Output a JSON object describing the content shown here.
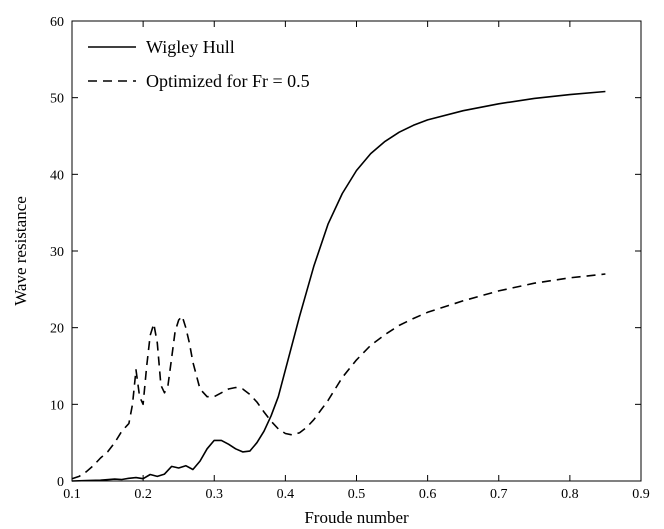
{
  "chart_data": {
    "type": "line",
    "title": "",
    "xlabel": "Froude number",
    "ylabel": "Wave resistance",
    "xlim": [
      0.1,
      0.9
    ],
    "ylim": [
      0,
      60
    ],
    "xticks": [
      "0.1",
      "0.2",
      "0.3",
      "0.4",
      "0.5",
      "0.6",
      "0.7",
      "0.8",
      "0.9"
    ],
    "yticks": [
      "0",
      "10",
      "20",
      "30",
      "40",
      "50",
      "60"
    ],
    "grid": false,
    "legend_position": "top-left",
    "series": [
      {
        "name": "Wigley Hull",
        "style": "solid",
        "x": [
          0.1,
          0.12,
          0.14,
          0.16,
          0.17,
          0.18,
          0.19,
          0.2,
          0.21,
          0.22,
          0.23,
          0.24,
          0.25,
          0.26,
          0.27,
          0.28,
          0.29,
          0.3,
          0.31,
          0.32,
          0.33,
          0.34,
          0.35,
          0.36,
          0.37,
          0.38,
          0.39,
          0.4,
          0.42,
          0.44,
          0.46,
          0.48,
          0.5,
          0.52,
          0.54,
          0.56,
          0.58,
          0.6,
          0.65,
          0.7,
          0.75,
          0.8,
          0.85
        ],
        "y": [
          0.0,
          0.05,
          0.1,
          0.25,
          0.2,
          0.35,
          0.45,
          0.3,
          0.85,
          0.6,
          0.9,
          1.9,
          1.7,
          2.0,
          1.5,
          2.6,
          4.2,
          5.3,
          5.3,
          4.8,
          4.2,
          3.8,
          3.9,
          5.0,
          6.5,
          8.5,
          11.0,
          14.5,
          21.5,
          28.0,
          33.5,
          37.5,
          40.5,
          42.7,
          44.3,
          45.5,
          46.4,
          47.1,
          48.3,
          49.2,
          49.9,
          50.4,
          50.8
        ]
      },
      {
        "name": "Optimized for Fr = 0.5",
        "style": "dashed",
        "x": [
          0.1,
          0.11,
          0.12,
          0.13,
          0.14,
          0.15,
          0.16,
          0.17,
          0.18,
          0.185,
          0.19,
          0.195,
          0.2,
          0.205,
          0.21,
          0.215,
          0.22,
          0.225,
          0.23,
          0.235,
          0.24,
          0.245,
          0.25,
          0.255,
          0.26,
          0.265,
          0.27,
          0.28,
          0.29,
          0.3,
          0.31,
          0.32,
          0.33,
          0.34,
          0.35,
          0.36,
          0.37,
          0.38,
          0.39,
          0.4,
          0.41,
          0.42,
          0.43,
          0.44,
          0.46,
          0.48,
          0.5,
          0.52,
          0.54,
          0.56,
          0.58,
          0.6,
          0.65,
          0.7,
          0.75,
          0.8,
          0.85
        ],
        "y": [
          0.3,
          0.6,
          1.2,
          2.0,
          3.0,
          3.8,
          5.0,
          6.5,
          7.5,
          10.0,
          14.5,
          11.0,
          10.0,
          15.0,
          19.0,
          20.5,
          18.0,
          12.5,
          11.5,
          12.5,
          16.0,
          19.5,
          21.0,
          21.5,
          20.0,
          18.0,
          15.5,
          12.0,
          11.0,
          11.0,
          11.5,
          12.0,
          12.2,
          12.0,
          11.3,
          10.3,
          9.0,
          7.8,
          6.8,
          6.2,
          6.0,
          6.3,
          7.0,
          8.0,
          10.5,
          13.5,
          15.8,
          17.7,
          19.1,
          20.3,
          21.2,
          22.0,
          23.5,
          24.8,
          25.8,
          26.5,
          27.0
        ]
      }
    ]
  }
}
